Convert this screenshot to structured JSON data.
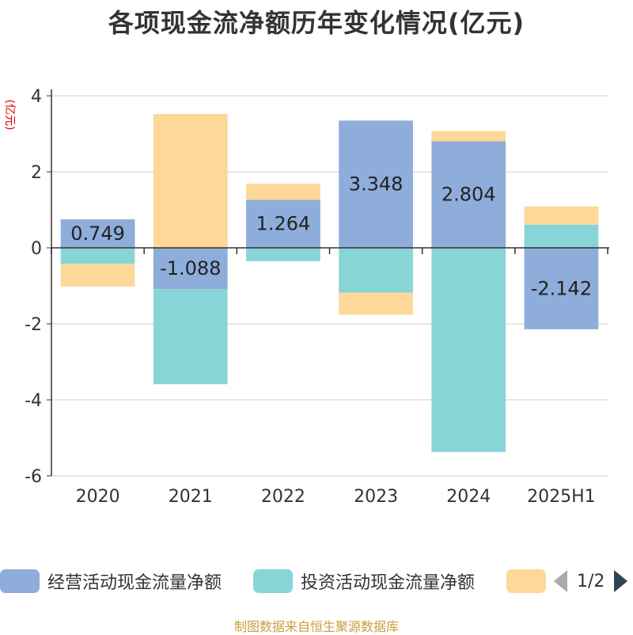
{
  "title": "各项现金流净额历年变化情况(亿元)",
  "source_text": "制图数据来自恒生聚源数据库",
  "pager": {
    "text": "1/2"
  },
  "chart_data": {
    "type": "bar",
    "stacked": true,
    "ylabel": "(亿元)",
    "ylim": [
      -6,
      4
    ],
    "yticks": [
      4,
      2,
      0,
      -2,
      -4,
      -6
    ],
    "grid": true,
    "legend_position": "bottom",
    "categories": [
      "2020",
      "2021",
      "2022",
      "2023",
      "2024",
      "2025H1"
    ],
    "series": [
      {
        "name": "经营活动现金流量净额",
        "color": "#8eadda",
        "values": [
          0.749,
          -1.088,
          1.264,
          3.348,
          2.804,
          -2.142
        ],
        "show_labels": true
      },
      {
        "name": "投资活动现金流量净额",
        "color": "#87d5d7",
        "values": [
          -0.42,
          -2.5,
          -0.35,
          -1.18,
          -5.37,
          0.61
        ],
        "show_labels": false
      },
      {
        "name": "",
        "color": "#fed899",
        "values": [
          -0.6,
          3.52,
          0.42,
          -0.58,
          0.27,
          0.48
        ],
        "show_labels": false
      }
    ],
    "labels": [
      "0.749",
      "-1.088",
      "1.264",
      "3.348",
      "2.804",
      "-2.142"
    ]
  }
}
